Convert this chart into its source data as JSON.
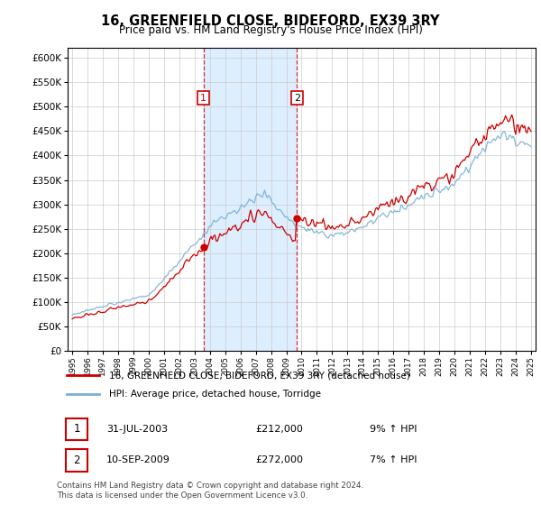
{
  "title": "16, GREENFIELD CLOSE, BIDEFORD, EX39 3RY",
  "subtitle": "Price paid vs. HM Land Registry's House Price Index (HPI)",
  "legend_line1": "16, GREENFIELD CLOSE, BIDEFORD, EX39 3RY (detached house)",
  "legend_line2": "HPI: Average price, detached house, Torridge",
  "transaction1_date": "31-JUL-2003",
  "transaction1_price": "£212,000",
  "transaction1_hpi": "9% ↑ HPI",
  "transaction2_date": "10-SEP-2009",
  "transaction2_price": "£272,000",
  "transaction2_hpi": "7% ↑ HPI",
  "footer": "Contains HM Land Registry data © Crown copyright and database right 2024.\nThis data is licensed under the Open Government Licence v3.0.",
  "price_color": "#cc0000",
  "hpi_color": "#7aafd4",
  "highlight_bg": "#ddeeff",
  "transaction1_x": 2003.58,
  "transaction2_x": 2009.69,
  "ylim_min": 0,
  "ylim_max": 620000,
  "xlim_min": 1994.7,
  "xlim_max": 2025.3
}
